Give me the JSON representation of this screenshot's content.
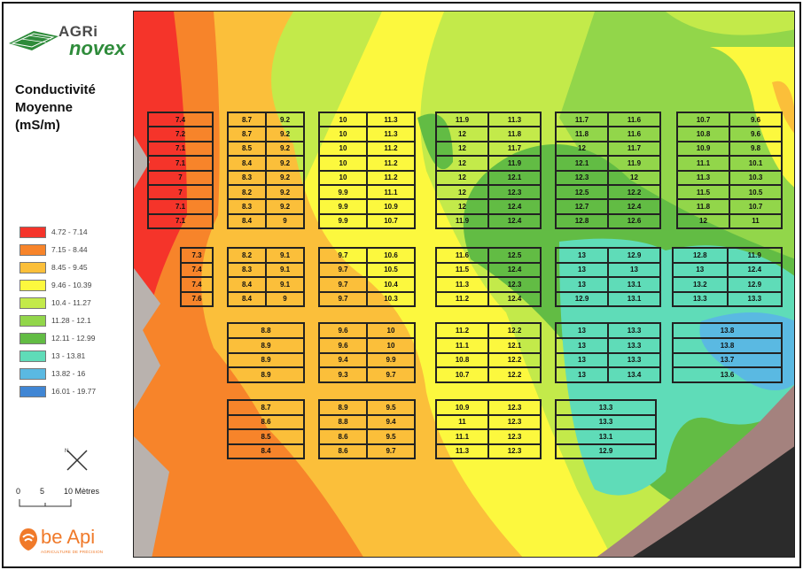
{
  "logo": {
    "brand_top": "AGRi",
    "brand_bottom": "novex"
  },
  "legend": {
    "title_lines": [
      "Conductivité",
      "Moyenne",
      "(mS/m)"
    ],
    "classes": [
      {
        "label": "4.72 - 7.14",
        "color": "#f5342a"
      },
      {
        "label": "7.15 - 8.44",
        "color": "#f7842a"
      },
      {
        "label": "8.45 - 9.45",
        "color": "#fbbf3a"
      },
      {
        "label": "9.46 - 10.39",
        "color": "#fcf83e"
      },
      {
        "label": "10.4 - 11.27",
        "color": "#c3ea4a"
      },
      {
        "label": "11.28 - 12.1",
        "color": "#92d64a"
      },
      {
        "label": "12.11 - 12.99",
        "color": "#62bc44"
      },
      {
        "label": "13 - 13.81",
        "color": "#5fdcb8"
      },
      {
        "label": "13.82 - 16",
        "color": "#5ab9e2"
      },
      {
        "label": "16.01 - 19.77",
        "color": "#4086d4"
      }
    ]
  },
  "north_arrow": {
    "icon": "north-arrow-icon"
  },
  "scale_bar": {
    "labels": [
      "0",
      "5",
      "10 Mètres"
    ]
  },
  "footer_logo": {
    "brand": "be Api",
    "tagline": "AGRICULTURE DE PRÉCISION"
  },
  "blocks": [
    {
      "rows": [
        [
          "7.4"
        ],
        [
          "7.2"
        ],
        [
          "7.1"
        ],
        [
          "7.1"
        ],
        [
          "7"
        ],
        [
          "7"
        ],
        [
          "7.1"
        ],
        [
          "7.1"
        ]
      ]
    },
    {
      "rows": [
        [
          "8.7",
          "9.2"
        ],
        [
          "8.7",
          "9.2"
        ],
        [
          "8.5",
          "9.2"
        ],
        [
          "8.4",
          "9.2"
        ],
        [
          "8.3",
          "9.2"
        ],
        [
          "8.2",
          "9.2"
        ],
        [
          "8.3",
          "9.2"
        ],
        [
          "8.4",
          "9"
        ]
      ]
    },
    {
      "rows": [
        [
          "10",
          "11.3"
        ],
        [
          "10",
          "11.3"
        ],
        [
          "10",
          "11.2"
        ],
        [
          "10",
          "11.2"
        ],
        [
          "10",
          "11.2"
        ],
        [
          "9.9",
          "11.1"
        ],
        [
          "9.9",
          "10.9"
        ],
        [
          "9.9",
          "10.7"
        ]
      ]
    },
    {
      "rows": [
        [
          "11.9",
          "11.3"
        ],
        [
          "12",
          "11.8"
        ],
        [
          "12",
          "11.7"
        ],
        [
          "12",
          "11.9"
        ],
        [
          "12",
          "12.1"
        ],
        [
          "12",
          "12.3"
        ],
        [
          "12",
          "12.4"
        ],
        [
          "11.9",
          "12.4"
        ]
      ]
    },
    {
      "rows": [
        [
          "11.7",
          "11.6"
        ],
        [
          "11.8",
          "11.6"
        ],
        [
          "12",
          "11.7"
        ],
        [
          "12.1",
          "11.9"
        ],
        [
          "12.3",
          "12"
        ],
        [
          "12.5",
          "12.2"
        ],
        [
          "12.7",
          "12.4"
        ],
        [
          "12.8",
          "12.6"
        ]
      ]
    },
    {
      "rows": [
        [
          "10.7",
          "9.6"
        ],
        [
          "10.8",
          "9.6"
        ],
        [
          "10.9",
          "9.8"
        ],
        [
          "11.1",
          "10.1"
        ],
        [
          "11.3",
          "10.3"
        ],
        [
          "11.5",
          "10.5"
        ],
        [
          "11.8",
          "10.7"
        ],
        [
          "12",
          "11"
        ]
      ]
    },
    {
      "rows": [
        [
          "7.3"
        ],
        [
          "7.4"
        ],
        [
          "7.4"
        ],
        [
          "7.6"
        ]
      ]
    },
    {
      "rows": [
        [
          "8.2",
          "9.1"
        ],
        [
          "8.3",
          "9.1"
        ],
        [
          "8.4",
          "9.1"
        ],
        [
          "8.4",
          "9"
        ]
      ]
    },
    {
      "rows": [
        [
          "9.7",
          "10.6"
        ],
        [
          "9.7",
          "10.5"
        ],
        [
          "9.7",
          "10.4"
        ],
        [
          "9.7",
          "10.3"
        ]
      ]
    },
    {
      "rows": [
        [
          "11.6",
          "12.5"
        ],
        [
          "11.5",
          "12.4"
        ],
        [
          "11.3",
          "12.3"
        ],
        [
          "11.2",
          "12.4"
        ]
      ]
    },
    {
      "rows": [
        [
          "13",
          "12.9"
        ],
        [
          "13",
          "13"
        ],
        [
          "13",
          "13.1"
        ],
        [
          "12.9",
          "13.1"
        ]
      ]
    },
    {
      "rows": [
        [
          "12.8",
          "11.9"
        ],
        [
          "13",
          "12.4"
        ],
        [
          "13.2",
          "12.9"
        ],
        [
          "13.3",
          "13.3"
        ]
      ]
    },
    {
      "rows": [
        [
          "8.8"
        ],
        [
          "8.9"
        ],
        [
          "8.9"
        ],
        [
          "8.9"
        ]
      ]
    },
    {
      "rows": [
        [
          "9.6",
          "10"
        ],
        [
          "9.6",
          "10"
        ],
        [
          "9.4",
          "9.9"
        ],
        [
          "9.3",
          "9.7"
        ]
      ]
    },
    {
      "rows": [
        [
          "11.2",
          "12.2"
        ],
        [
          "11.1",
          "12.1"
        ],
        [
          "10.8",
          "12.2"
        ],
        [
          "10.7",
          "12.2"
        ]
      ]
    },
    {
      "rows": [
        [
          "13",
          "13.3"
        ],
        [
          "13",
          "13.3"
        ],
        [
          "13",
          "13.3"
        ],
        [
          "13",
          "13.4"
        ]
      ]
    },
    {
      "rows": [
        [
          "13.8"
        ],
        [
          "13.8"
        ],
        [
          "13.7"
        ],
        [
          "13.6"
        ]
      ]
    },
    {
      "rows": [
        [
          "8.7"
        ],
        [
          "8.6"
        ],
        [
          "8.5"
        ],
        [
          "8.4"
        ]
      ]
    },
    {
      "rows": [
        [
          "8.9",
          "9.5"
        ],
        [
          "8.8",
          "9.4"
        ],
        [
          "8.6",
          "9.5"
        ],
        [
          "8.6",
          "9.7"
        ]
      ]
    },
    {
      "rows": [
        [
          "10.9",
          "12.3"
        ],
        [
          "11",
          "12.3"
        ],
        [
          "11.1",
          "12.3"
        ],
        [
          "11.3",
          "12.3"
        ]
      ]
    },
    {
      "rows": [
        [
          "13.3"
        ],
        [
          "13.3"
        ],
        [
          "13.1"
        ],
        [
          "12.9"
        ]
      ]
    }
  ]
}
